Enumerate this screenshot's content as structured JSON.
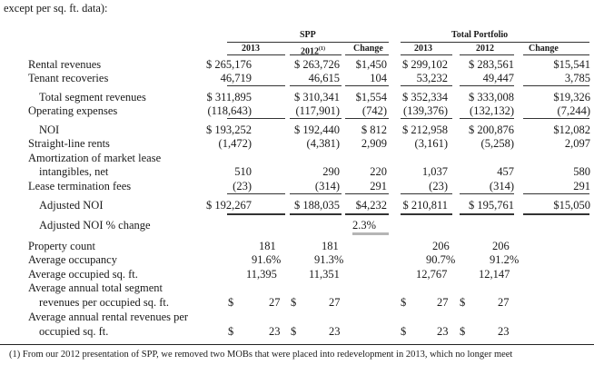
{
  "intro": "except per sq. ft. data):",
  "headers": {
    "spp": "SPP",
    "total": "Total Portfolio",
    "y2013": "2013",
    "y2012": "2012",
    "fn_mark": "(1)",
    "change": "Change"
  },
  "rows": {
    "rental": {
      "label": "Rental revenues",
      "spp2013": "$ 265,176",
      "spp2012": "$ 263,726",
      "sppchg": "$1,450",
      "tp2013": "$ 299,102",
      "tp2012": "$ 283,561",
      "tpchg": "$15,541"
    },
    "tenant": {
      "label": "Tenant recoveries",
      "spp2013": "46,719",
      "spp2012": "46,615",
      "sppchg": "104",
      "tp2013": "53,232",
      "tp2012": "49,447",
      "tpchg": "3,785"
    },
    "total_seg": {
      "label": "Total segment revenues",
      "spp2013": "$ 311,895",
      "spp2012": "$ 310,341",
      "sppchg": "$1,554",
      "tp2013": "$ 352,334",
      "tp2012": "$ 333,008",
      "tpchg": "$19,326"
    },
    "opex": {
      "label": "Operating expenses",
      "spp2013": "(118,643)",
      "spp2012": "(117,901)",
      "sppchg": "(742)",
      "tp2013": "(139,376)",
      "tp2012": "(132,132)",
      "tpchg": "(7,244)"
    },
    "noi": {
      "label": "NOI",
      "spp2013": "$ 193,252",
      "spp2012": "$ 192,440",
      "sppchg": "$  812",
      "tp2013": "$ 212,958",
      "tp2012": "$ 200,876",
      "tpchg": "$12,082"
    },
    "straight": {
      "label": "Straight-line rents",
      "spp2013": "(1,472)",
      "spp2012": "(4,381)",
      "sppchg": "2,909",
      "tp2013": "(3,161)",
      "tp2012": "(5,258)",
      "tpchg": "2,097"
    },
    "amort": {
      "label": "Amortization of market lease",
      "label2": "intangibles, net",
      "spp2013": "510",
      "spp2012": "290",
      "sppchg": "220",
      "tp2013": "1,037",
      "tp2012": "457",
      "tpchg": "580"
    },
    "lease_term": {
      "label": "Lease termination fees",
      "spp2013": "(23)",
      "spp2012": "(314)",
      "sppchg": "291",
      "tp2013": "(23)",
      "tp2012": "(314)",
      "tpchg": "291"
    },
    "adj_noi": {
      "label": "Adjusted NOI",
      "spp2013": "$ 192,267",
      "spp2012": "$ 188,035",
      "sppchg": "$4,232",
      "tp2013": "$ 210,811",
      "tp2012": "$ 195,761",
      "tpchg": "$15,050"
    },
    "adj_pct": {
      "label": "Adjusted NOI % change",
      "sppchg": "2.3%"
    },
    "prop_count": {
      "label": "Property count",
      "spp2013": "181",
      "spp2012": "181",
      "tp2013": "206",
      "tp2012": "206"
    },
    "occupancy": {
      "label": "Average occupancy",
      "spp2013": "91.6%",
      "spp2012": "91.3%",
      "tp2013": "90.7%",
      "tp2012": "91.2%"
    },
    "occ_sqft": {
      "label": "Average occupied sq. ft.",
      "spp2013": "11,395",
      "spp2012": "11,351",
      "tp2013": "12,767",
      "tp2012": "12,147"
    },
    "seg_rev_sqft": {
      "label": "Average annual total segment",
      "label2": "revenues per occupied sq. ft.",
      "d": "$",
      "spp2013": "27",
      "spp2012": "27",
      "tp2013": "27",
      "tp2012": "27"
    },
    "rent_rev_sqft": {
      "label": "Average annual rental revenues per",
      "label2": "occupied sq. ft.",
      "d": "$",
      "spp2013": "23",
      "spp2012": "23",
      "tp2013": "23",
      "tp2012": "23"
    }
  },
  "footnote": "(1)   From our 2012 presentation of SPP, we removed two MOBs that were placed into redevelopment in 2013, which no longer meet"
}
